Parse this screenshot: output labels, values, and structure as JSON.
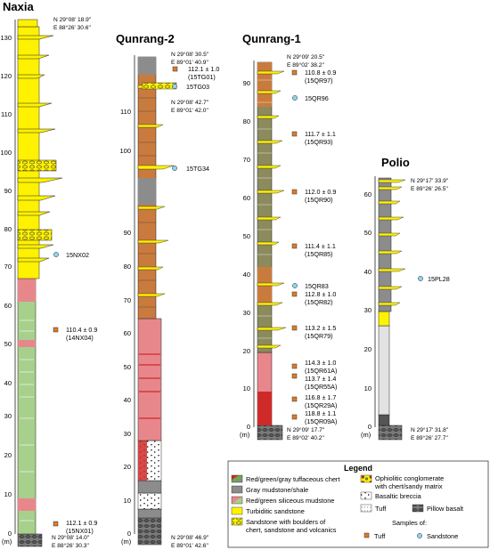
{
  "sections": [
    {
      "name": "Naxia",
      "top_coord": [
        "N 29°08' 18.9\"",
        "E 88°26' 30.6\""
      ],
      "bottom_coord": [
        "N 29°08' 14.0\"",
        "E 88°26' 30.3\""
      ],
      "ticks": [
        "0",
        "10",
        "20",
        "30",
        "40",
        "50",
        "60",
        "70",
        "80",
        "90",
        "100",
        "110",
        "120",
        "130"
      ],
      "unit": "(m)",
      "samples": [
        {
          "type": "sandstone",
          "id": "15NX02",
          "height_m": 73
        },
        {
          "type": "tuff",
          "age": "110.4 ± 0.9",
          "id": "(14NX04)",
          "height_m": 46
        },
        {
          "type": "tuff",
          "age": "112.1 ± 0.9",
          "id": "(15NX01)",
          "height_m": 2
        }
      ]
    },
    {
      "name": "Qunrang-2",
      "top_coord": [
        "N 29°08' 30.5\"",
        "E 89°01' 40.9\""
      ],
      "mid_coord": [
        "N 29°08' 42.7\"",
        "E 89°01' 42.0\""
      ],
      "bottom_coord": [
        "N 29°08' 46.9\"",
        "E 89°01' 42.6\""
      ],
      "ticks": [
        "0",
        "10",
        "20",
        "30",
        "40",
        "50",
        "60",
        "70",
        "80",
        "90",
        "100",
        "110"
      ],
      "unit": "(m)",
      "samples": [
        {
          "type": "tuff",
          "age": "112.1 ± 1.0",
          "id": "(15TG01)",
          "height_m": 120
        },
        {
          "type": "sandstone",
          "id": "15TG03",
          "height_m": 117
        },
        {
          "type": "sandstone",
          "id": "15TG34",
          "height_m": 95
        }
      ]
    },
    {
      "name": "Qunrang-1",
      "top_coord": [
        "N 29°09' 20.5\"",
        "E 89°02' 38.2\""
      ],
      "bottom_coord": [
        "N 29°09' 17.7\"",
        "E 89°02' 40.2\""
      ],
      "ticks": [
        "0",
        "10",
        "20",
        "30",
        "40",
        "50",
        "60",
        "70",
        "80",
        "90"
      ],
      "unit": "(m)",
      "samples": [
        {
          "type": "tuff",
          "age": "110.8 ± 0.9",
          "id": "(15QR97)",
          "height_m": 92
        },
        {
          "type": "sandstone",
          "id": "15QR96",
          "height_m": 85
        },
        {
          "type": "tuff",
          "age": "111.7 ± 1.1",
          "id": "(15QR93)",
          "height_m": 75
        },
        {
          "type": "tuff",
          "age": "112.0 ± 0.9",
          "id": "(15QR90)",
          "height_m": 60
        },
        {
          "type": "tuff",
          "age": "111.4 ± 1.1",
          "id": "(15QR85)",
          "height_m": 46
        },
        {
          "type": "sandstone",
          "id": "15QR83",
          "height_m": 36
        },
        {
          "type": "tuff",
          "age": "112.8 ± 1.0",
          "id": "(15QR82)",
          "height_m": 33
        },
        {
          "type": "tuff",
          "age": "113.2 ± 1.5",
          "id": "(15QR79)",
          "height_m": 26
        },
        {
          "type": "tuff",
          "age": "114.3 ± 1.0",
          "id": "(15QR61A)",
          "height_m": 17
        },
        {
          "type": "tuff",
          "age": "113.7 ± 1.4",
          "id": "(15QR55A)",
          "height_m": 13.5
        },
        {
          "type": "tuff",
          "age": "116.8 ± 1.7",
          "id": "(15QR29A)",
          "height_m": 8
        },
        {
          "type": "tuff",
          "age": "118.8 ± 1.1",
          "id": "(15QR09A)",
          "height_m": 3.5
        }
      ]
    },
    {
      "name": "Polio",
      "top_coord": [
        "N 29°17' 33.9\"",
        "E 89°26' 26.5\""
      ],
      "bottom_coord": [
        "N 29°17' 31.8\"",
        "E 89°26' 27.7\""
      ],
      "ticks": [
        "0",
        "10",
        "20",
        "30",
        "40",
        "50",
        "60"
      ],
      "unit": "(m)",
      "samples": [
        {
          "type": "sandstone",
          "id": "15PL28",
          "height_m": 38
        }
      ]
    }
  ],
  "legend": {
    "title": "Legend",
    "items": [
      {
        "key": "chert",
        "label": "Red/green/gray tuffaceous chert"
      },
      {
        "key": "mudstone",
        "label": "Gray mudstone/shale"
      },
      {
        "key": "siliceous",
        "label": "Red/green siliceous mudstone"
      },
      {
        "key": "turbidite",
        "label": "Turbiditic sandstone"
      },
      {
        "key": "boulders",
        "label": "Sandstone with boulders of",
        "label2": "chert, sandstone and volcanics"
      },
      {
        "key": "conglomerate",
        "label": "Ophiolitic conglomerate",
        "label2": "with chert/sandy matrix"
      },
      {
        "key": "breccia",
        "label": "Basaltic breccia"
      },
      {
        "key": "tuff",
        "label": "Tuff"
      },
      {
        "key": "pillow",
        "label": "Pillow basalt"
      }
    ],
    "samples_label": "Samples of:",
    "sample_tuff": "Tuff",
    "sample_sandstone": "Sandstone"
  },
  "colors": {
    "yellow": "#fff200",
    "red": "#e8878b",
    "dark_red": "#cf2a2a",
    "green": "#a7d08c",
    "brown": "#c97b3e",
    "gray": "#8c8c8c",
    "olive": "#8b8b5e",
    "light_gray": "#e2e2e2",
    "tuff_marker": "#e07a27",
    "sandstone_marker": "#8fd3ef"
  }
}
